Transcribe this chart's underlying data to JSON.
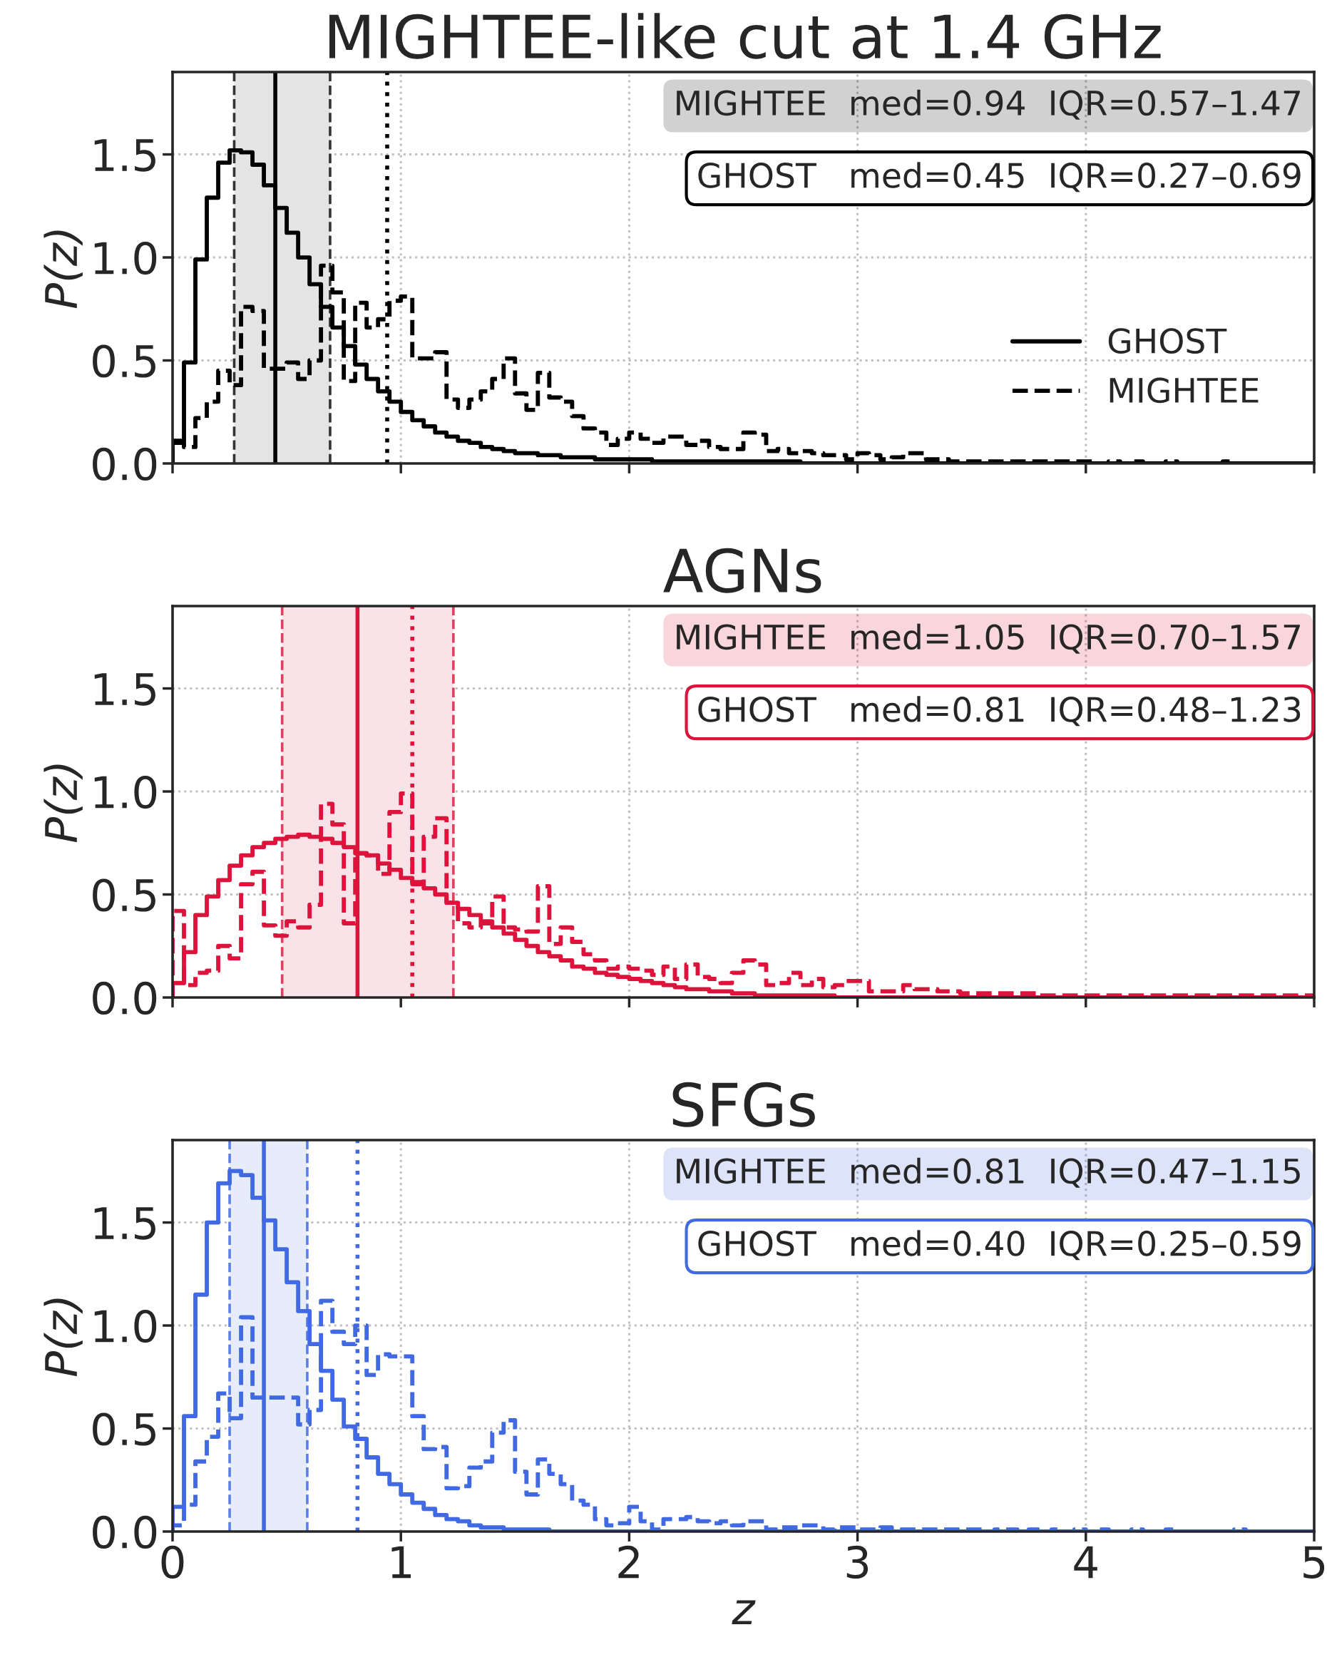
{
  "chart_data": [
    {
      "type": "histogram",
      "title": "MIGHTEE-like cut at 1.4 GHz",
      "ylabel": "P(z)",
      "bins": [
        0,
        0.05,
        0.1,
        0.15,
        0.2,
        0.25,
        0.3,
        0.35,
        0.4,
        0.45,
        0.5,
        0.55,
        0.6,
        0.65,
        0.7,
        0.75,
        0.8,
        0.85,
        0.9,
        0.95,
        1.0,
        1.05,
        1.1,
        1.15,
        1.2,
        1.25,
        1.3,
        1.35,
        1.4,
        1.45,
        1.5,
        1.55,
        1.6,
        1.65,
        1.7,
        1.75,
        1.8,
        1.85,
        1.9,
        1.95,
        2.0,
        2.05,
        2.1,
        2.15,
        2.2,
        2.25,
        2.3,
        2.35,
        2.4,
        2.45,
        2.5,
        2.55,
        2.6,
        2.65,
        2.7,
        2.75,
        2.8,
        2.85,
        2.9,
        2.95,
        3.0,
        3.05,
        3.1,
        3.15,
        3.2,
        3.25,
        3.3,
        3.35,
        3.4,
        3.45,
        3.5,
        3.55,
        3.6,
        3.65,
        3.7,
        3.75,
        3.8,
        3.85,
        3.9,
        3.95,
        4.0,
        4.05,
        4.1,
        4.15,
        4.2,
        4.25,
        4.3,
        4.35,
        4.4,
        4.45,
        4.5,
        4.55,
        4.6,
        4.65,
        4.7,
        4.75,
        4.8,
        4.85,
        4.9,
        4.95,
        5.0
      ],
      "series": [
        {
          "name": "GHOST",
          "color": "#000000",
          "line_style": "solid",
          "values": [
            0.11,
            0.49,
            0.99,
            1.29,
            1.46,
            1.52,
            1.51,
            1.45,
            1.35,
            1.24,
            1.12,
            1.0,
            0.87,
            0.76,
            0.66,
            0.57,
            0.48,
            0.41,
            0.35,
            0.3,
            0.25,
            0.21,
            0.18,
            0.15,
            0.13,
            0.11,
            0.1,
            0.08,
            0.07,
            0.06,
            0.05,
            0.05,
            0.04,
            0.04,
            0.03,
            0.03,
            0.03,
            0.02,
            0.02,
            0.02,
            0.02,
            0.02,
            0.01,
            0.01,
            0.01,
            0.01,
            0.01,
            0.01,
            0.01,
            0.01,
            0.01,
            0.01,
            0.01,
            0.01,
            0.01,
            0,
            0,
            0,
            0,
            0,
            0,
            0,
            0,
            0,
            0,
            0,
            0,
            0,
            0,
            0,
            0,
            0,
            0,
            0,
            0,
            0,
            0,
            0,
            0,
            0,
            0,
            0,
            0,
            0,
            0,
            0,
            0,
            0,
            0,
            0,
            0,
            0,
            0,
            0,
            0,
            0,
            0,
            0,
            0,
            0
          ]
        },
        {
          "name": "MIGHTEE",
          "color": "#000000",
          "line_style": "dashed",
          "values": [
            0.1,
            0.08,
            0.22,
            0.3,
            0.45,
            0.38,
            0.76,
            0.74,
            0.46,
            0.46,
            0.49,
            0.41,
            0.5,
            0.96,
            0.83,
            0.4,
            0.78,
            0.66,
            0.7,
            0.79,
            0.81,
            0.51,
            0.51,
            0.54,
            0.31,
            0.27,
            0.31,
            0.35,
            0.41,
            0.51,
            0.34,
            0.26,
            0.44,
            0.32,
            0.3,
            0.23,
            0.17,
            0.15,
            0.09,
            0.12,
            0.15,
            0.12,
            0.1,
            0.13,
            0.13,
            0.09,
            0.11,
            0.08,
            0.07,
            0.07,
            0.15,
            0.14,
            0.06,
            0.07,
            0.05,
            0.06,
            0.05,
            0.04,
            0.04,
            0.02,
            0.05,
            0.04,
            0.02,
            0.03,
            0.05,
            0.05,
            0.02,
            0.02,
            0.01,
            0.01,
            0.01,
            0.01,
            0.01,
            0.01,
            0.01,
            0.01,
            0.01,
            0.01,
            0.01,
            0.01,
            0.01,
            0,
            0.01,
            0,
            0.01,
            0,
            0,
            0.01,
            0,
            0,
            0,
            0,
            0.01,
            0,
            0,
            0,
            0,
            0,
            0,
            0
          ]
        }
      ],
      "ref_lines": [
        {
          "axis": "x",
          "value": 0.27,
          "color": "#333333",
          "line_style": "dashed"
        },
        {
          "axis": "x",
          "value": 0.69,
          "color": "#333333",
          "line_style": "dashed"
        },
        {
          "axis": "x",
          "value": 0.45,
          "color": "#000000",
          "line_style": "solid"
        },
        {
          "axis": "x",
          "value": 0.94,
          "color": "#000000",
          "line_style": "dotted"
        }
      ],
      "bands": [
        {
          "axis": "x",
          "from": 0.27,
          "to": 0.69,
          "color": "#e4e4e4"
        }
      ],
      "annotations": [
        "MIGHTEE  med=0.94  IQR=0.57–1.47",
        "GHOST   med=0.45  IQR=0.27–0.69"
      ],
      "xlim": [
        0,
        5
      ],
      "xticks": [
        0,
        1,
        2,
        3,
        4,
        5
      ],
      "ylim": [
        0,
        1.9
      ],
      "yticks": [
        {
          "value": 0,
          "label": "0.0"
        },
        {
          "value": 0.5,
          "label": "0.5"
        },
        {
          "value": 1.0,
          "label": "1.0"
        },
        {
          "value": 1.5,
          "label": "1.5"
        }
      ],
      "grid": true,
      "legend": "lower right",
      "tick_labels": "y"
    },
    {
      "type": "histogram",
      "title": "AGNs",
      "ylabel": "P(z)",
      "bins": [
        0,
        0.05,
        0.1,
        0.15,
        0.2,
        0.25,
        0.3,
        0.35,
        0.4,
        0.45,
        0.5,
        0.55,
        0.6,
        0.65,
        0.7,
        0.75,
        0.8,
        0.85,
        0.9,
        0.95,
        1.0,
        1.05,
        1.1,
        1.15,
        1.2,
        1.25,
        1.3,
        1.35,
        1.4,
        1.45,
        1.5,
        1.55,
        1.6,
        1.65,
        1.7,
        1.75,
        1.8,
        1.85,
        1.9,
        1.95,
        2.0,
        2.05,
        2.1,
        2.15,
        2.2,
        2.25,
        2.3,
        2.35,
        2.4,
        2.45,
        2.5,
        2.55,
        2.6,
        2.65,
        2.7,
        2.75,
        2.8,
        2.85,
        2.9,
        2.95,
        3.0,
        3.05,
        3.1,
        3.15,
        3.2,
        3.25,
        3.3,
        3.35,
        3.4,
        3.45,
        3.5,
        3.55,
        3.6,
        3.65,
        3.7,
        3.75,
        3.8,
        3.85,
        3.9,
        3.95,
        4.0,
        4.05,
        4.1,
        4.15,
        4.2,
        4.25,
        4.3,
        4.35,
        4.4,
        4.45,
        4.5,
        4.55,
        4.6,
        4.65,
        4.7,
        4.75,
        4.8,
        4.85,
        4.9,
        4.95,
        5.0
      ],
      "series": [
        {
          "color": "#dc143c",
          "line_style": "solid",
          "values": [
            0.07,
            0.22,
            0.4,
            0.49,
            0.57,
            0.64,
            0.69,
            0.73,
            0.75,
            0.77,
            0.78,
            0.79,
            0.78,
            0.77,
            0.75,
            0.73,
            0.7,
            0.69,
            0.65,
            0.62,
            0.58,
            0.55,
            0.53,
            0.5,
            0.46,
            0.43,
            0.4,
            0.37,
            0.34,
            0.31,
            0.28,
            0.25,
            0.22,
            0.2,
            0.18,
            0.15,
            0.14,
            0.12,
            0.11,
            0.1,
            0.09,
            0.08,
            0.07,
            0.06,
            0.05,
            0.04,
            0.04,
            0.03,
            0.03,
            0.02,
            0.02,
            0.01,
            0.01,
            0.01,
            0.01,
            0.01,
            0.01,
            0.01,
            0,
            0,
            0,
            0,
            0,
            0,
            0,
            0,
            0,
            0,
            0,
            0,
            0,
            0,
            0,
            0,
            0,
            0,
            0,
            0,
            0,
            0,
            0,
            0,
            0,
            0,
            0,
            0,
            0,
            0,
            0,
            0,
            0,
            0,
            0,
            0,
            0,
            0,
            0,
            0,
            0,
            0
          ]
        },
        {
          "color": "#dc143c",
          "line_style": "dashed",
          "values": [
            0.42,
            0.06,
            0.12,
            0.13,
            0.25,
            0.19,
            0.55,
            0.61,
            0.35,
            0.3,
            0.37,
            0.34,
            0.45,
            0.94,
            0.84,
            0.36,
            0.7,
            0.69,
            0.6,
            0.9,
            0.99,
            0.56,
            0.78,
            0.87,
            0.46,
            0.36,
            0.34,
            0.36,
            0.49,
            0.34,
            0.33,
            0.32,
            0.54,
            0.26,
            0.34,
            0.27,
            0.21,
            0.18,
            0.14,
            0.15,
            0.14,
            0.13,
            0.11,
            0.15,
            0.09,
            0.16,
            0.1,
            0.09,
            0.07,
            0.12,
            0.18,
            0.16,
            0.06,
            0.07,
            0.12,
            0.06,
            0.09,
            0.05,
            0.06,
            0.08,
            0.08,
            0.03,
            0.03,
            0.03,
            0.06,
            0.04,
            0.04,
            0.03,
            0.03,
            0.02,
            0.02,
            0.02,
            0.02,
            0.02,
            0.02,
            0.02,
            0.01,
            0.01,
            0.01,
            0.01,
            0.01,
            0.01,
            0.01,
            0.01,
            0.01,
            0.01,
            0.01,
            0.01,
            0.01,
            0.01,
            0.01,
            0.01,
            0.01,
            0.01,
            0.01,
            0.01,
            0.01,
            0.01,
            0.01,
            0.01
          ]
        }
      ],
      "ref_lines": [
        {
          "axis": "x",
          "value": 0.48,
          "color": "#e0405f",
          "line_style": "dashed"
        },
        {
          "axis": "x",
          "value": 1.23,
          "color": "#e0405f",
          "line_style": "dashed"
        },
        {
          "axis": "x",
          "value": 0.81,
          "color": "#dc143c",
          "line_style": "solid"
        },
        {
          "axis": "x",
          "value": 1.05,
          "color": "#dc143c",
          "line_style": "dotted"
        }
      ],
      "bands": [
        {
          "axis": "x",
          "from": 0.48,
          "to": 1.23,
          "color": "#f9e3e8"
        }
      ],
      "annotations": [
        "MIGHTEE  med=1.05  IQR=0.70–1.57",
        "GHOST   med=0.81  IQR=0.48–1.23"
      ],
      "xlim": [
        0,
        5
      ],
      "xticks": [
        0,
        1,
        2,
        3,
        4,
        5
      ],
      "ylim": [
        0,
        1.9
      ],
      "yticks": [
        {
          "value": 0,
          "label": "0.0"
        },
        {
          "value": 0.5,
          "label": "0.5"
        },
        {
          "value": 1.0,
          "label": "1.0"
        },
        {
          "value": 1.5,
          "label": "1.5"
        }
      ],
      "grid": true,
      "tick_labels": "y"
    },
    {
      "type": "histogram",
      "title": "SFGs",
      "xlabel": "z",
      "ylabel": "P(z)",
      "bins": [
        0,
        0.05,
        0.1,
        0.15,
        0.2,
        0.25,
        0.3,
        0.35,
        0.4,
        0.45,
        0.5,
        0.55,
        0.6,
        0.65,
        0.7,
        0.75,
        0.8,
        0.85,
        0.9,
        0.95,
        1.0,
        1.05,
        1.1,
        1.15,
        1.2,
        1.25,
        1.3,
        1.35,
        1.4,
        1.45,
        1.5,
        1.55,
        1.6,
        1.65,
        1.7,
        1.75,
        1.8,
        1.85,
        1.9,
        1.95,
        2.0,
        2.05,
        2.1,
        2.15,
        2.2,
        2.25,
        2.3,
        2.35,
        2.4,
        2.45,
        2.5,
        2.55,
        2.6,
        2.65,
        2.7,
        2.75,
        2.8,
        2.85,
        2.9,
        2.95,
        3.0,
        3.05,
        3.1,
        3.15,
        3.2,
        3.25,
        3.3,
        3.35,
        3.4,
        3.45,
        3.5,
        3.55,
        3.6,
        3.65,
        3.7,
        3.75,
        3.8,
        3.85,
        3.9,
        3.95,
        4.0,
        4.05,
        4.1,
        4.15,
        4.2,
        4.25,
        4.3,
        4.35,
        4.4,
        4.45,
        4.5,
        4.55,
        4.6,
        4.65,
        4.7,
        4.75,
        4.8,
        4.85,
        4.9,
        4.95,
        5.0
      ],
      "series": [
        {
          "color": "#4169e1",
          "line_style": "solid",
          "values": [
            0.12,
            0.56,
            1.15,
            1.5,
            1.69,
            1.75,
            1.73,
            1.62,
            1.51,
            1.37,
            1.21,
            1.07,
            0.91,
            0.78,
            0.64,
            0.51,
            0.45,
            0.36,
            0.28,
            0.23,
            0.18,
            0.14,
            0.11,
            0.08,
            0.06,
            0.05,
            0.03,
            0.02,
            0.02,
            0.01,
            0.01,
            0.01,
            0.01,
            0,
            0,
            0,
            0,
            0,
            0,
            0,
            0,
            0,
            0,
            0,
            0,
            0,
            0,
            0,
            0,
            0,
            0,
            0,
            0,
            0,
            0,
            0,
            0,
            0,
            0,
            0,
            0,
            0,
            0,
            0,
            0,
            0,
            0,
            0,
            0,
            0,
            0,
            0,
            0,
            0,
            0,
            0,
            0,
            0,
            0,
            0,
            0,
            0,
            0,
            0,
            0,
            0,
            0,
            0,
            0,
            0,
            0,
            0,
            0,
            0,
            0,
            0,
            0,
            0,
            0,
            0
          ]
        },
        {
          "color": "#4169e1",
          "line_style": "dashed",
          "values": [
            0.03,
            0.13,
            0.34,
            0.46,
            0.67,
            0.55,
            1.04,
            0.65,
            0.65,
            0.65,
            0.65,
            0.52,
            0.59,
            1.12,
            0.97,
            0.91,
            1.0,
            0.76,
            0.86,
            0.85,
            0.85,
            0.56,
            0.4,
            0.41,
            0.21,
            0.22,
            0.31,
            0.34,
            0.48,
            0.54,
            0.29,
            0.18,
            0.35,
            0.28,
            0.23,
            0.15,
            0.13,
            0.06,
            0.03,
            0.04,
            0.12,
            0.05,
            0.01,
            0.06,
            0.06,
            0.07,
            0.05,
            0.04,
            0.05,
            0.03,
            0.05,
            0.05,
            0.01,
            0.02,
            0.02,
            0.03,
            0.03,
            0.01,
            0.02,
            0.02,
            0.01,
            0.01,
            0.02,
            0.01,
            0.01,
            0.01,
            0.01,
            0.01,
            0.01,
            0.01,
            0.01,
            0,
            0.01,
            0.01,
            0,
            0.01,
            0,
            0.01,
            0,
            0.01,
            0,
            0.01,
            0,
            0,
            0.01,
            0,
            0,
            0.01,
            0,
            0,
            0,
            0,
            0,
            0.01,
            0,
            0,
            0,
            0,
            0,
            0
          ]
        }
      ],
      "ref_lines": [
        {
          "axis": "x",
          "value": 0.25,
          "color": "#5b7fe6",
          "line_style": "dashed"
        },
        {
          "axis": "x",
          "value": 0.59,
          "color": "#5b7fe6",
          "line_style": "dashed"
        },
        {
          "axis": "x",
          "value": 0.4,
          "color": "#4169e1",
          "line_style": "solid"
        },
        {
          "axis": "x",
          "value": 0.81,
          "color": "#4169e1",
          "line_style": "dotted"
        }
      ],
      "bands": [
        {
          "axis": "x",
          "from": 0.25,
          "to": 0.59,
          "color": "#e7ecfb"
        }
      ],
      "annotations": [
        "MIGHTEE  med=0.81  IQR=0.47–1.15",
        "GHOST   med=0.40  IQR=0.25–0.59"
      ],
      "xlim": [
        0,
        5
      ],
      "xticks": [
        0,
        1,
        2,
        3,
        4,
        5
      ],
      "ylim": [
        0,
        1.9
      ],
      "yticks": [
        {
          "value": 0,
          "label": "0.0"
        },
        {
          "value": 0.5,
          "label": "0.5"
        },
        {
          "value": 1.0,
          "label": "1.0"
        },
        {
          "value": 1.5,
          "label": "1.5"
        }
      ],
      "grid": true
    }
  ]
}
